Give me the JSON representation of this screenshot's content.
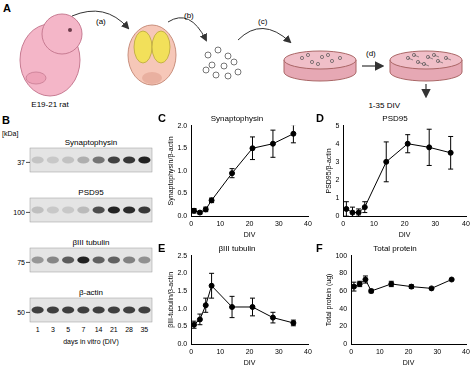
{
  "panel_a": {
    "label": "A",
    "source": "E19-21 rat",
    "steps": [
      "(a)",
      "(b)",
      "(c)",
      "(d)"
    ],
    "output": "1-35 DIV"
  },
  "panel_b": {
    "label": "B",
    "unit_label": "[kDa]",
    "blots": [
      {
        "name": "Synaptophysin",
        "marker": 37
      },
      {
        "name": "PSD95",
        "marker": 100
      },
      {
        "name": "βIII tubulin",
        "marker": 75
      },
      {
        "name": "β-actin",
        "marker": 50
      }
    ],
    "lanes": [
      1,
      3,
      5,
      7,
      14,
      21,
      28,
      35
    ],
    "lanes_label": "days in vitro (DIV)"
  },
  "chart_data": [
    {
      "type": "line",
      "panel_label": "C",
      "title": "Synaptophysin",
      "xlabel": "DIV",
      "ylabel": "Synaptophysin/β-actin",
      "x": [
        1,
        3,
        5,
        7,
        14,
        21,
        28,
        35
      ],
      "values": [
        0.12,
        0.08,
        0.15,
        0.35,
        0.95,
        1.5,
        1.6,
        1.82
      ],
      "errors": [
        0.05,
        0.03,
        0.05,
        0.05,
        0.1,
        0.25,
        0.3,
        0.2
      ],
      "xlim": [
        0,
        40
      ],
      "xticks": [
        0,
        10,
        20,
        30,
        40
      ],
      "ylim": [
        0,
        2
      ],
      "yticks": [
        {
          "value": 0,
          "label": "0.0"
        },
        0.5,
        {
          "value": 1,
          "label": "1.0"
        },
        1.5,
        {
          "value": 2,
          "label": "2.0"
        }
      ],
      "color": "#000000",
      "marker": "circle",
      "grid": false
    },
    {
      "type": "line",
      "panel_label": "D",
      "title": "PSD95",
      "xlabel": "DIV",
      "ylabel": "PSD95/β-actin",
      "x": [
        1,
        3,
        5,
        7,
        14,
        21,
        28,
        35
      ],
      "values": [
        0.4,
        0.2,
        0.2,
        0.5,
        3.0,
        4.0,
        3.8,
        3.5
      ],
      "errors": [
        0.4,
        0.3,
        0.2,
        0.3,
        1.1,
        0.5,
        1.0,
        0.9
      ],
      "xlim": [
        0,
        40
      ],
      "xticks": [
        0,
        10,
        20,
        30,
        40
      ],
      "ylim": [
        0,
        5
      ],
      "yticks": [
        0,
        1,
        2,
        3,
        4,
        5
      ],
      "color": "#000000",
      "marker": "circle",
      "grid": false
    },
    {
      "type": "line",
      "panel_label": "E",
      "title": "βIII tubulin",
      "xlabel": "DIV",
      "ylabel": "βIII-tubulin/β-actin",
      "x": [
        1,
        3,
        5,
        7,
        14,
        21,
        28,
        35
      ],
      "values": [
        0.55,
        0.7,
        1.1,
        1.65,
        1.05,
        1.05,
        0.75,
        0.6
      ],
      "errors": [
        0.1,
        0.15,
        0.2,
        0.35,
        0.3,
        0.25,
        0.15,
        0.08
      ],
      "xlim": [
        0,
        40
      ],
      "xticks": [
        0,
        10,
        20,
        30,
        40
      ],
      "ylim": [
        0,
        2.5
      ],
      "yticks": [
        {
          "value": 0,
          "label": "0.0"
        },
        0.5,
        {
          "value": 1,
          "label": "1.0"
        },
        1.5,
        {
          "value": 2,
          "label": "2.0"
        },
        2.5
      ],
      "color": "#000000",
      "marker": "circle",
      "grid": false
    },
    {
      "type": "line",
      "panel_label": "F",
      "title": "Total protein",
      "xlabel": "DIV",
      "ylabel": "Total protein (ug)",
      "x": [
        1,
        3,
        5,
        7,
        14,
        21,
        28,
        35
      ],
      "values": [
        65,
        68,
        73,
        60,
        68,
        65,
        63,
        73
      ],
      "errors": [
        5,
        3,
        4,
        2,
        3,
        2,
        1,
        1
      ],
      "xlim": [
        0,
        40
      ],
      "xticks": [
        0,
        10,
        20,
        30,
        40
      ],
      "ylim": [
        0,
        100
      ],
      "yticks": [
        0,
        20,
        40,
        60,
        80,
        100
      ],
      "color": "#000000",
      "marker": "circle",
      "grid": false
    }
  ]
}
